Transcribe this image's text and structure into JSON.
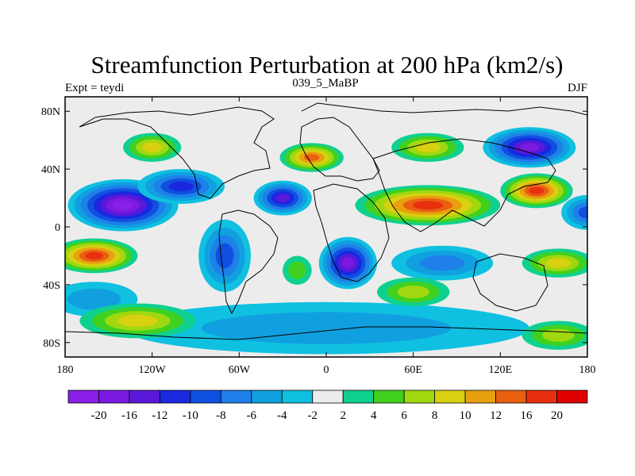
{
  "chart_data": {
    "type": "heatmap",
    "title": "Streamfunction Perturbation at 200 hPa (km2/s)",
    "left_label": "Expt = teydi",
    "center_label": "039_5_MaBP",
    "right_label": "DJF",
    "x_ticks": [
      {
        "value": -180,
        "label": "180"
      },
      {
        "value": -120,
        "label": "120W"
      },
      {
        "value": -60,
        "label": "60W"
      },
      {
        "value": 0,
        "label": "0"
      },
      {
        "value": 60,
        "label": "60E"
      },
      {
        "value": 120,
        "label": "120E"
      },
      {
        "value": 180,
        "label": "180"
      }
    ],
    "y_ticks": [
      {
        "value": 80,
        "label": "80N"
      },
      {
        "value": 40,
        "label": "40N"
      },
      {
        "value": 0,
        "label": "0"
      },
      {
        "value": -40,
        "label": "40S"
      },
      {
        "value": -80,
        "label": "80S"
      }
    ],
    "xlim": [
      -180,
      180
    ],
    "ylim": [
      -90,
      90
    ],
    "colorbar": {
      "levels": [
        -20,
        -16,
        -12,
        -10,
        -8,
        -6,
        -4,
        -2,
        2,
        4,
        6,
        8,
        10,
        12,
        16,
        20
      ],
      "labels": [
        "-20",
        "-16",
        "-12",
        "-10",
        "-8",
        "-6",
        "-4",
        "-2",
        "2",
        "4",
        "6",
        "8",
        "10",
        "12",
        "16",
        "20"
      ],
      "colors": [
        "#8a1fe8",
        "#7a1ae0",
        "#5a18d8",
        "#1a28e0",
        "#1050e0",
        "#1e80e8",
        "#10a0e0",
        "#10c0e0",
        "#ececec",
        "#10d090",
        "#40d020",
        "#a0d810",
        "#d8d010",
        "#e8a010",
        "#e86010",
        "#e83010",
        "#e00000"
      ]
    },
    "features": [
      {
        "name": "neg-north-pacific",
        "lon": -140,
        "lat": 15,
        "rlon": 38,
        "rlat": 18,
        "value": -22
      },
      {
        "name": "neg-east-pacific",
        "lon": -100,
        "lat": 28,
        "rlon": 30,
        "rlat": 12,
        "value": -10
      },
      {
        "name": "neg-atlantic",
        "lon": -30,
        "lat": 20,
        "rlon": 20,
        "rlat": 12,
        "value": -14
      },
      {
        "name": "neg-west-asia",
        "lon": 140,
        "lat": 55,
        "rlon": 32,
        "rlat": 14,
        "value": -18
      },
      {
        "name": "neg-south-atlantic",
        "lon": 15,
        "lat": -25,
        "rlon": 20,
        "rlat": 18,
        "value": -16
      },
      {
        "name": "neg-south-america",
        "lon": -70,
        "lat": -20,
        "rlon": 18,
        "rlat": 25,
        "value": -8
      },
      {
        "name": "neg-south-indian",
        "lon": 80,
        "lat": -25,
        "rlon": 35,
        "rlat": 12,
        "value": -6
      },
      {
        "name": "neg-southern-ocean",
        "lon": 0,
        "lat": -70,
        "rlon": 140,
        "rlat": 18,
        "value": -4
      },
      {
        "name": "neg-south-pacific-west",
        "lon": -160,
        "lat": -50,
        "rlon": 30,
        "rlat": 12,
        "value": -4
      },
      {
        "name": "neg-far-east-eq",
        "lon": 180,
        "lat": 10,
        "rlon": 18,
        "rlat": 12,
        "value": -8
      },
      {
        "name": "pos-asia-ridge",
        "lon": 70,
        "lat": 15,
        "rlon": 50,
        "rlat": 14,
        "value": 16
      },
      {
        "name": "pos-east-asia",
        "lon": 145,
        "lat": 25,
        "rlon": 25,
        "rlat": 12,
        "value": 18
      },
      {
        "name": "pos-europe",
        "lon": -10,
        "lat": 48,
        "rlon": 22,
        "rlat": 10,
        "value": 12
      },
      {
        "name": "pos-north-asia",
        "lon": 70,
        "lat": 55,
        "rlon": 25,
        "rlat": 10,
        "value": 8
      },
      {
        "name": "pos-north-america",
        "lon": -120,
        "lat": 55,
        "rlon": 20,
        "rlat": 10,
        "value": 8
      },
      {
        "name": "pos-south-pacific",
        "lon": -160,
        "lat": -20,
        "rlon": 30,
        "rlat": 12,
        "value": 16
      },
      {
        "name": "pos-south-pacific-high",
        "lon": -130,
        "lat": -65,
        "rlon": 40,
        "rlat": 12,
        "value": 8
      },
      {
        "name": "pos-south-indian",
        "lon": 160,
        "lat": -25,
        "rlon": 25,
        "rlat": 10,
        "value": 8
      },
      {
        "name": "pos-southern-east",
        "lon": 160,
        "lat": -75,
        "rlon": 25,
        "rlat": 10,
        "value": 6
      },
      {
        "name": "pos-south-atlantic-mid",
        "lon": -20,
        "lat": -30,
        "rlon": 10,
        "rlat": 10,
        "value": 4
      },
      {
        "name": "pos-south-africa",
        "lon": 60,
        "lat": -45,
        "rlon": 25,
        "rlat": 10,
        "value": 6
      }
    ]
  }
}
